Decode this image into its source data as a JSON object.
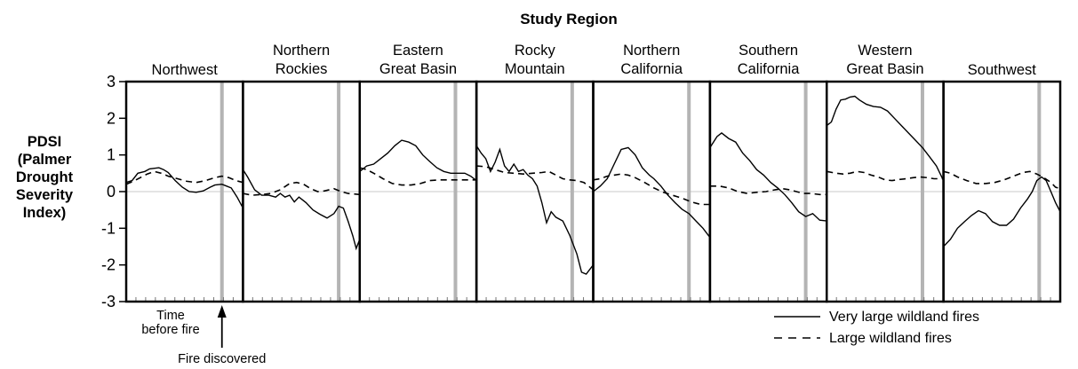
{
  "chart_data": {
    "type": "line",
    "title": "Study Region",
    "ylabel": [
      "PDSI",
      "(Palmer",
      "Drought",
      "Severity",
      "Index)"
    ],
    "ylim": [
      -3,
      3
    ],
    "yticks": [
      "3",
      "2",
      "1",
      "0",
      "-1",
      "-2",
      "-3"
    ],
    "zero_line": true,
    "x_units": "time before fire (no numeric labels)",
    "legend": {
      "position": "bottom-right",
      "entries": [
        {
          "label": "Very large wildland fires",
          "style": "solid"
        },
        {
          "label": "Large wildland fires",
          "style": "dashed"
        }
      ]
    },
    "annotations": {
      "time_before_fire": [
        "Time",
        "before fire"
      ],
      "fire_discovered": "Fire discovered"
    },
    "panels": [
      {
        "label": [
          "Northwest"
        ],
        "fire_x": 0.82,
        "very_large": [
          [
            0,
            0.25
          ],
          [
            0.05,
            0.3
          ],
          [
            0.1,
            0.5
          ],
          [
            0.16,
            0.55
          ],
          [
            0.2,
            0.62
          ],
          [
            0.28,
            0.65
          ],
          [
            0.32,
            0.6
          ],
          [
            0.36,
            0.52
          ],
          [
            0.42,
            0.3
          ],
          [
            0.48,
            0.12
          ],
          [
            0.54,
            0.0
          ],
          [
            0.6,
            -0.02
          ],
          [
            0.66,
            0.02
          ],
          [
            0.72,
            0.12
          ],
          [
            0.76,
            0.18
          ],
          [
            0.82,
            0.2
          ],
          [
            0.86,
            0.15
          ],
          [
            0.9,
            0.1
          ],
          [
            0.95,
            -0.15
          ],
          [
            1,
            -0.45
          ]
        ],
        "large": [
          [
            0,
            0.2
          ],
          [
            0.06,
            0.28
          ],
          [
            0.12,
            0.38
          ],
          [
            0.18,
            0.48
          ],
          [
            0.24,
            0.55
          ],
          [
            0.3,
            0.5
          ],
          [
            0.36,
            0.42
          ],
          [
            0.44,
            0.35
          ],
          [
            0.52,
            0.28
          ],
          [
            0.6,
            0.25
          ],
          [
            0.68,
            0.3
          ],
          [
            0.76,
            0.38
          ],
          [
            0.82,
            0.42
          ],
          [
            0.88,
            0.38
          ],
          [
            0.94,
            0.3
          ],
          [
            1,
            0.25
          ]
        ]
      },
      {
        "label": [
          "Northern",
          "Rockies"
        ],
        "fire_x": 0.82,
        "very_large": [
          [
            0,
            0.6
          ],
          [
            0.04,
            0.4
          ],
          [
            0.1,
            0.05
          ],
          [
            0.16,
            -0.1
          ],
          [
            0.22,
            -0.1
          ],
          [
            0.28,
            -0.15
          ],
          [
            0.32,
            -0.05
          ],
          [
            0.36,
            -0.15
          ],
          [
            0.4,
            -0.1
          ],
          [
            0.44,
            -0.28
          ],
          [
            0.48,
            -0.15
          ],
          [
            0.54,
            -0.3
          ],
          [
            0.6,
            -0.5
          ],
          [
            0.66,
            -0.62
          ],
          [
            0.72,
            -0.72
          ],
          [
            0.78,
            -0.6
          ],
          [
            0.82,
            -0.4
          ],
          [
            0.86,
            -0.45
          ],
          [
            0.9,
            -0.8
          ],
          [
            0.94,
            -1.2
          ],
          [
            0.97,
            -1.55
          ],
          [
            1,
            -1.3
          ]
        ],
        "large": [
          [
            0,
            -0.05
          ],
          [
            0.08,
            -0.1
          ],
          [
            0.16,
            -0.08
          ],
          [
            0.24,
            -0.05
          ],
          [
            0.32,
            0.05
          ],
          [
            0.4,
            0.22
          ],
          [
            0.46,
            0.25
          ],
          [
            0.52,
            0.2
          ],
          [
            0.58,
            0.08
          ],
          [
            0.64,
            0.0
          ],
          [
            0.7,
            0.02
          ],
          [
            0.78,
            0.08
          ],
          [
            0.84,
            0.0
          ],
          [
            0.9,
            -0.05
          ],
          [
            1,
            -0.08
          ]
        ]
      },
      {
        "label": [
          "Eastern",
          "Great Basin"
        ],
        "fire_x": 0.82,
        "very_large": [
          [
            0,
            0.55
          ],
          [
            0.06,
            0.7
          ],
          [
            0.12,
            0.75
          ],
          [
            0.18,
            0.9
          ],
          [
            0.24,
            1.05
          ],
          [
            0.3,
            1.25
          ],
          [
            0.36,
            1.4
          ],
          [
            0.42,
            1.35
          ],
          [
            0.48,
            1.25
          ],
          [
            0.54,
            1.0
          ],
          [
            0.6,
            0.82
          ],
          [
            0.66,
            0.65
          ],
          [
            0.72,
            0.55
          ],
          [
            0.78,
            0.5
          ],
          [
            0.84,
            0.5
          ],
          [
            0.9,
            0.5
          ],
          [
            0.95,
            0.42
          ],
          [
            1,
            0.3
          ]
        ],
        "large": [
          [
            0,
            0.65
          ],
          [
            0.06,
            0.6
          ],
          [
            0.12,
            0.5
          ],
          [
            0.2,
            0.35
          ],
          [
            0.28,
            0.22
          ],
          [
            0.36,
            0.18
          ],
          [
            0.44,
            0.18
          ],
          [
            0.52,
            0.22
          ],
          [
            0.6,
            0.3
          ],
          [
            0.68,
            0.32
          ],
          [
            0.76,
            0.32
          ],
          [
            0.84,
            0.32
          ],
          [
            0.9,
            0.32
          ],
          [
            1,
            0.32
          ]
        ]
      },
      {
        "label": [
          "Rocky",
          "Mountain"
        ],
        "fire_x": 0.82,
        "very_large": [
          [
            0,
            1.25
          ],
          [
            0.04,
            1.05
          ],
          [
            0.08,
            0.9
          ],
          [
            0.12,
            0.55
          ],
          [
            0.16,
            0.8
          ],
          [
            0.2,
            1.15
          ],
          [
            0.24,
            0.7
          ],
          [
            0.28,
            0.55
          ],
          [
            0.32,
            0.75
          ],
          [
            0.36,
            0.55
          ],
          [
            0.4,
            0.6
          ],
          [
            0.44,
            0.45
          ],
          [
            0.48,
            0.35
          ],
          [
            0.52,
            0.15
          ],
          [
            0.56,
            -0.3
          ],
          [
            0.6,
            -0.85
          ],
          [
            0.64,
            -0.55
          ],
          [
            0.68,
            -0.7
          ],
          [
            0.74,
            -0.8
          ],
          [
            0.8,
            -1.2
          ],
          [
            0.86,
            -1.7
          ],
          [
            0.9,
            -2.2
          ],
          [
            0.94,
            -2.25
          ],
          [
            1,
            -2.0
          ]
        ],
        "large": [
          [
            0,
            0.7
          ],
          [
            0.08,
            0.68
          ],
          [
            0.16,
            0.6
          ],
          [
            0.24,
            0.52
          ],
          [
            0.32,
            0.5
          ],
          [
            0.4,
            0.48
          ],
          [
            0.48,
            0.5
          ],
          [
            0.56,
            0.52
          ],
          [
            0.62,
            0.55
          ],
          [
            0.68,
            0.45
          ],
          [
            0.74,
            0.35
          ],
          [
            0.8,
            0.32
          ],
          [
            0.86,
            0.3
          ],
          [
            0.92,
            0.25
          ],
          [
            0.96,
            0.15
          ],
          [
            1,
            0.05
          ]
        ]
      },
      {
        "label": [
          "Northern",
          "California"
        ],
        "fire_x": 0.82,
        "very_large": [
          [
            0,
            0.0
          ],
          [
            0.06,
            0.15
          ],
          [
            0.12,
            0.35
          ],
          [
            0.18,
            0.75
          ],
          [
            0.24,
            1.15
          ],
          [
            0.3,
            1.2
          ],
          [
            0.36,
            1.0
          ],
          [
            0.42,
            0.65
          ],
          [
            0.48,
            0.45
          ],
          [
            0.52,
            0.35
          ],
          [
            0.58,
            0.15
          ],
          [
            0.64,
            -0.1
          ],
          [
            0.7,
            -0.3
          ],
          [
            0.76,
            -0.48
          ],
          [
            0.82,
            -0.6
          ],
          [
            0.88,
            -0.8
          ],
          [
            0.94,
            -1.0
          ],
          [
            1,
            -1.25
          ]
        ],
        "large": [
          [
            0,
            0.32
          ],
          [
            0.06,
            0.35
          ],
          [
            0.12,
            0.42
          ],
          [
            0.18,
            0.45
          ],
          [
            0.24,
            0.48
          ],
          [
            0.3,
            0.45
          ],
          [
            0.36,
            0.38
          ],
          [
            0.44,
            0.25
          ],
          [
            0.52,
            0.1
          ],
          [
            0.6,
            -0.02
          ],
          [
            0.68,
            -0.1
          ],
          [
            0.76,
            -0.18
          ],
          [
            0.84,
            -0.28
          ],
          [
            0.92,
            -0.35
          ],
          [
            1,
            -0.35
          ]
        ]
      },
      {
        "label": [
          "Southern",
          "California"
        ],
        "fire_x": 0.82,
        "very_large": [
          [
            0,
            1.2
          ],
          [
            0.06,
            1.5
          ],
          [
            0.1,
            1.6
          ],
          [
            0.16,
            1.45
          ],
          [
            0.22,
            1.35
          ],
          [
            0.28,
            1.05
          ],
          [
            0.34,
            0.85
          ],
          [
            0.4,
            0.6
          ],
          [
            0.46,
            0.45
          ],
          [
            0.52,
            0.25
          ],
          [
            0.58,
            0.1
          ],
          [
            0.64,
            -0.08
          ],
          [
            0.7,
            -0.3
          ],
          [
            0.76,
            -0.55
          ],
          [
            0.82,
            -0.68
          ],
          [
            0.88,
            -0.6
          ],
          [
            0.94,
            -0.78
          ],
          [
            1,
            -0.8
          ]
        ],
        "large": [
          [
            0,
            0.15
          ],
          [
            0.08,
            0.15
          ],
          [
            0.16,
            0.1
          ],
          [
            0.24,
            0.0
          ],
          [
            0.32,
            -0.05
          ],
          [
            0.4,
            -0.02
          ],
          [
            0.48,
            0.0
          ],
          [
            0.56,
            0.05
          ],
          [
            0.62,
            0.08
          ],
          [
            0.68,
            0.05
          ],
          [
            0.74,
            0.0
          ],
          [
            0.8,
            -0.05
          ],
          [
            0.86,
            -0.05
          ],
          [
            0.94,
            -0.08
          ],
          [
            1,
            -0.08
          ]
        ]
      },
      {
        "label": [
          "Western",
          "Great Basin"
        ],
        "fire_x": 0.82,
        "very_large": [
          [
            0,
            1.8
          ],
          [
            0.04,
            1.9
          ],
          [
            0.08,
            2.25
          ],
          [
            0.12,
            2.5
          ],
          [
            0.16,
            2.52
          ],
          [
            0.2,
            2.58
          ],
          [
            0.24,
            2.6
          ],
          [
            0.28,
            2.5
          ],
          [
            0.34,
            2.38
          ],
          [
            0.4,
            2.32
          ],
          [
            0.46,
            2.3
          ],
          [
            0.52,
            2.2
          ],
          [
            0.58,
            2.0
          ],
          [
            0.64,
            1.8
          ],
          [
            0.7,
            1.6
          ],
          [
            0.76,
            1.4
          ],
          [
            0.82,
            1.2
          ],
          [
            0.88,
            0.95
          ],
          [
            0.94,
            0.7
          ],
          [
            1,
            0.3
          ]
        ],
        "large": [
          [
            0,
            0.55
          ],
          [
            0.08,
            0.5
          ],
          [
            0.14,
            0.48
          ],
          [
            0.2,
            0.5
          ],
          [
            0.26,
            0.55
          ],
          [
            0.32,
            0.52
          ],
          [
            0.38,
            0.45
          ],
          [
            0.44,
            0.4
          ],
          [
            0.5,
            0.32
          ],
          [
            0.56,
            0.3
          ],
          [
            0.62,
            0.33
          ],
          [
            0.68,
            0.35
          ],
          [
            0.74,
            0.38
          ],
          [
            0.8,
            0.4
          ],
          [
            0.86,
            0.38
          ],
          [
            0.92,
            0.35
          ],
          [
            1,
            0.35
          ]
        ]
      },
      {
        "label": [
          "Southwest"
        ],
        "fire_x": 0.82,
        "very_large": [
          [
            0,
            -1.5
          ],
          [
            0.06,
            -1.3
          ],
          [
            0.12,
            -1.0
          ],
          [
            0.18,
            -0.82
          ],
          [
            0.24,
            -0.65
          ],
          [
            0.3,
            -0.52
          ],
          [
            0.36,
            -0.6
          ],
          [
            0.42,
            -0.82
          ],
          [
            0.48,
            -0.92
          ],
          [
            0.54,
            -0.92
          ],
          [
            0.6,
            -0.75
          ],
          [
            0.66,
            -0.45
          ],
          [
            0.72,
            -0.2
          ],
          [
            0.76,
            0.0
          ],
          [
            0.8,
            0.3
          ],
          [
            0.84,
            0.4
          ],
          [
            0.88,
            0.3
          ],
          [
            0.92,
            0.0
          ],
          [
            0.96,
            -0.3
          ],
          [
            1,
            -0.55
          ]
        ],
        "large": [
          [
            0,
            0.55
          ],
          [
            0.06,
            0.5
          ],
          [
            0.12,
            0.4
          ],
          [
            0.2,
            0.3
          ],
          [
            0.28,
            0.22
          ],
          [
            0.36,
            0.22
          ],
          [
            0.44,
            0.25
          ],
          [
            0.52,
            0.32
          ],
          [
            0.6,
            0.42
          ],
          [
            0.68,
            0.52
          ],
          [
            0.74,
            0.55
          ],
          [
            0.8,
            0.48
          ],
          [
            0.86,
            0.38
          ],
          [
            0.92,
            0.25
          ],
          [
            0.96,
            0.12
          ],
          [
            1,
            0.08
          ]
        ]
      }
    ]
  }
}
